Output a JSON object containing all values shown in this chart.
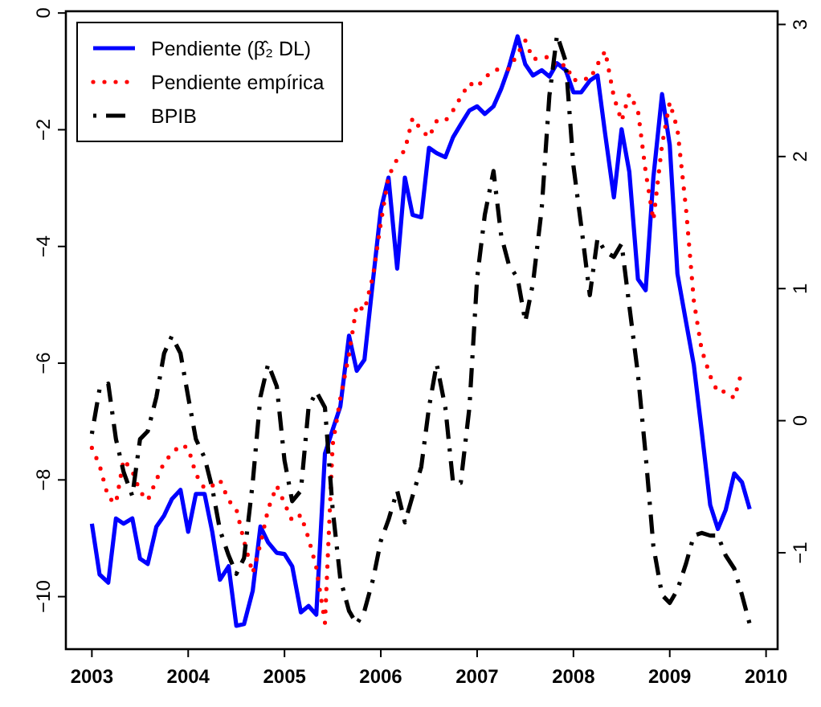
{
  "chart_data": {
    "type": "line",
    "x": [
      2003,
      2003.08,
      2003.17,
      2003.25,
      2003.33,
      2003.42,
      2003.5,
      2003.58,
      2003.67,
      2003.75,
      2003.83,
      2003.92,
      2004,
      2004.08,
      2004.17,
      2004.25,
      2004.33,
      2004.42,
      2004.5,
      2004.58,
      2004.67,
      2004.75,
      2004.83,
      2004.92,
      2005,
      2005.08,
      2005.17,
      2005.25,
      2005.33,
      2005.42,
      2005.5,
      2005.58,
      2005.67,
      2005.75,
      2005.83,
      2005.92,
      2006,
      2006.08,
      2006.17,
      2006.25,
      2006.33,
      2006.42,
      2006.5,
      2006.58,
      2006.67,
      2006.75,
      2006.83,
      2006.92,
      2007,
      2007.08,
      2007.17,
      2007.25,
      2007.33,
      2007.42,
      2007.5,
      2007.58,
      2007.67,
      2007.75,
      2007.83,
      2007.92,
      2008,
      2008.08,
      2008.17,
      2008.25,
      2008.33,
      2008.42,
      2008.5,
      2008.58,
      2008.67,
      2008.75,
      2008.83,
      2008.92,
      2009,
      2009.08,
      2009.17,
      2009.25,
      2009.33,
      2009.42,
      2009.5,
      2009.58,
      2009.67,
      2009.75,
      2009.83
    ],
    "series": [
      {
        "name": "Pendiente (β̂₂ DL)",
        "color": "#0000ff",
        "line_style": "solid",
        "values": [
          -8.75,
          -9.62,
          -9.76,
          -8.66,
          -8.75,
          -8.66,
          -9.35,
          -9.44,
          -8.8,
          -8.61,
          -8.33,
          -8.17,
          -8.89,
          -8.24,
          -8.24,
          -8.89,
          -9.71,
          -9.48,
          -10.5,
          -10.47,
          -9.9,
          -8.8,
          -9.07,
          -9.25,
          -9.27,
          -9.48,
          -10.27,
          -10.16,
          -10.31,
          -7.55,
          -7.14,
          -6.74,
          -5.53,
          -6.13,
          -5.94,
          -4.56,
          -3.37,
          -2.82,
          -4.38,
          -2.82,
          -3.46,
          -3.5,
          -2.31,
          -2.4,
          -2.47,
          -2.13,
          -1.91,
          -1.67,
          -1.6,
          -1.73,
          -1.6,
          -1.3,
          -0.93,
          -0.4,
          -0.88,
          -1.07,
          -0.98,
          -1.09,
          -0.86,
          -0.98,
          -1.36,
          -1.36,
          -1.16,
          -1.07,
          -2.08,
          -3.16,
          -1.99,
          -2.72,
          -4.56,
          -4.75,
          -2.82,
          -1.39,
          -2.26,
          -4.47,
          -5.3,
          -6.03,
          -7.14,
          -8.43,
          -8.84,
          -8.52,
          -7.89,
          -8.04,
          -8.5
        ]
      },
      {
        "name": "Pendiente empírica",
        "color": "#ff0000",
        "line_style": "dotted",
        "x": [
          2003,
          2003.08,
          2003.17,
          2003.25,
          2003.33,
          2003.42,
          2003.5,
          2003.58,
          2003.67,
          2003.75,
          2003.83,
          2003.92,
          2004,
          2004.08,
          2004.17,
          2004.25,
          2004.33,
          2004.42,
          2004.5,
          2004.58,
          2004.67,
          2004.75,
          2004.83,
          2004.92,
          2005,
          2005.08,
          2005.17,
          2005.25,
          2005.33,
          2005.42,
          2005.5,
          2005.58,
          2005.67,
          2005.75,
          2005.83,
          2005.92,
          2006,
          2006.08,
          2006.17,
          2006.25,
          2006.33,
          2006.42,
          2006.5,
          2006.58,
          2006.67,
          2006.75,
          2006.83,
          2006.92,
          2007,
          2007.08,
          2007.17,
          2007.25,
          2007.33,
          2007.42,
          2007.5,
          2007.58,
          2007.67,
          2007.75,
          2007.83,
          2007.92,
          2008,
          2008.08,
          2008.17,
          2008.25,
          2008.33,
          2008.42,
          2008.5,
          2008.58,
          2008.67,
          2008.75,
          2008.83,
          2008.92,
          2009,
          2009.08,
          2009.17,
          2009.25,
          2009.33,
          2009.42,
          2009.5,
          2009.58,
          2009.67,
          2009.75
        ],
        "values": [
          -7.45,
          -7.75,
          -8.3,
          -8.4,
          -7.65,
          -7.85,
          -8.2,
          -8.35,
          -8.0,
          -7.7,
          -7.55,
          -7.4,
          -7.45,
          -7.9,
          -8.15,
          -8.1,
          -8.0,
          -8.35,
          -8.5,
          -9.05,
          -9.6,
          -9.1,
          -8.5,
          -8.1,
          -8.4,
          -8.7,
          -8.6,
          -9.0,
          -9.5,
          -10.45,
          -7.4,
          -6.6,
          -5.85,
          -5.0,
          -5.1,
          -4.5,
          -3.6,
          -2.8,
          -2.5,
          -2.35,
          -1.8,
          -2.0,
          -2.13,
          -1.85,
          -1.85,
          -1.67,
          -1.44,
          -1.2,
          -1.27,
          -1.11,
          -0.98,
          -0.96,
          -0.96,
          -0.7,
          -0.47,
          -0.79,
          -0.77,
          -0.75,
          -0.93,
          -0.88,
          -1.16,
          -1.11,
          -1.14,
          -0.88,
          -0.65,
          -1.44,
          -1.85,
          -1.39,
          -1.67,
          -2.72,
          -3.55,
          -2.26,
          -1.53,
          -1.99,
          -3.37,
          -4.93,
          -5.76,
          -6.22,
          -6.5,
          -6.48,
          -6.6,
          -6.13
        ]
      },
      {
        "name": "BPIB",
        "color": "#000000",
        "line_style": "dashed",
        "axis": "y2",
        "values": [
          -0.1,
          0.24,
          0.28,
          -0.14,
          -0.39,
          -0.57,
          -0.14,
          -0.08,
          0.18,
          0.51,
          0.64,
          0.51,
          0.18,
          -0.14,
          -0.28,
          -0.51,
          -0.83,
          -1.02,
          -1.16,
          -1.04,
          -0.47,
          0.18,
          0.43,
          0.26,
          -0.3,
          -0.61,
          -0.53,
          0.1,
          0.22,
          0.1,
          -0.67,
          -1.2,
          -1.44,
          -1.54,
          -1.44,
          -1.2,
          -0.91,
          -0.75,
          -0.53,
          -0.77,
          -0.57,
          -0.35,
          0.1,
          0.43,
          0.1,
          -0.47,
          -0.47,
          0.1,
          1.08,
          1.56,
          1.89,
          1.4,
          1.18,
          1.08,
          0.75,
          1.04,
          1.6,
          2.46,
          2.92,
          2.72,
          1.93,
          1.48,
          0.95,
          1.38,
          1.28,
          1.24,
          1.34,
          0.87,
          0.35,
          -0.26,
          -0.95,
          -1.32,
          -1.38,
          -1.28,
          -1.08,
          -0.87,
          -0.85,
          -0.87,
          -0.87,
          -1.02,
          -1.12,
          -1.32,
          -1.54
        ]
      }
    ],
    "xlim": [
      2002.73,
      2010.12
    ],
    "xticks": [
      2003,
      2004,
      2005,
      2006,
      2007,
      2008,
      2009,
      2010
    ],
    "ylim": [
      -10.9,
      0.03
    ],
    "yticks": [
      -10,
      -8,
      -6,
      -4,
      -2,
      0
    ],
    "y2lim": [
      -1.73,
      3.1
    ],
    "y2ticks": [
      -1,
      0,
      1,
      2,
      3
    ],
    "grid": false,
    "legend": "top left"
  }
}
